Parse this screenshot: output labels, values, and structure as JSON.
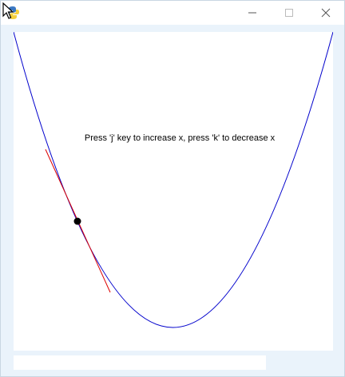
{
  "window": {
    "instructions_text": "Press 'j' key to increase x, press 'k' to decrease x",
    "icons": {
      "app": "python-icon",
      "cursor": "cursor-arrow-icon",
      "minimize": "minimize-icon",
      "maximize": "maximize-icon",
      "close": "close-icon"
    }
  },
  "colors": {
    "curve": "#0000cc",
    "tangent": "#dd0000",
    "point": "#000000",
    "canvas": "#ffffff",
    "background": "#eaf3fb"
  },
  "bottom_entry": {
    "value": ""
  }
}
